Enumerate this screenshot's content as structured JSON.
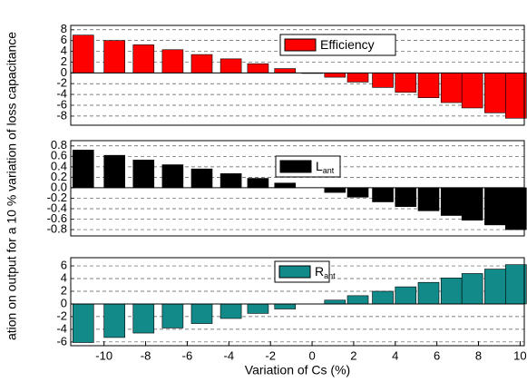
{
  "ylabel": "ation on output for a  10 % variation of loss capacitance",
  "chart_data": [
    {
      "type": "bar",
      "x": [
        -11,
        -9.5,
        -8.1,
        -6.7,
        -5.3,
        -3.9,
        -2.6,
        -1.3,
        0,
        1.1,
        2.2,
        3.4,
        4.5,
        5.6,
        6.7,
        7.7,
        8.8,
        9.8
      ],
      "series": [
        {
          "name": "Efficiency",
          "color": "#ff0000",
          "values": [
            7,
            6,
            5.2,
            4.3,
            3.4,
            2.6,
            1.7,
            0.8,
            -0.1,
            -0.8,
            -1.7,
            -2.7,
            -3.6,
            -4.6,
            -5.5,
            -6.5,
            -7.4,
            -8.4
          ]
        }
      ],
      "xlim": [
        -11.6,
        10.2
      ],
      "ylim": [
        -9.7,
        8.8
      ],
      "yticks": [
        -8,
        -6,
        -4,
        -2,
        0,
        2,
        4,
        6,
        8
      ],
      "grid": true
    },
    {
      "type": "bar",
      "x": [
        -11,
        -9.5,
        -8.1,
        -6.7,
        -5.3,
        -3.9,
        -2.6,
        -1.3,
        0,
        1.1,
        2.2,
        3.4,
        4.5,
        5.6,
        6.7,
        7.7,
        8.8,
        9.8
      ],
      "series": [
        {
          "name": "L",
          "subscript": "ant",
          "color": "#000000",
          "values": [
            0.72,
            0.62,
            0.53,
            0.44,
            0.36,
            0.27,
            0.18,
            0.09,
            0,
            -0.09,
            -0.18,
            -0.27,
            -0.36,
            -0.44,
            -0.53,
            -0.62,
            -0.71,
            -0.8
          ]
        }
      ],
      "xlim": [
        -11.6,
        10.2
      ],
      "ylim": [
        -0.92,
        0.9
      ],
      "yticks": [
        -0.8,
        -0.6,
        -0.4,
        -0.2,
        {
          "value": 0,
          "label": "0.0"
        },
        0.2,
        0.4,
        0.6,
        0.8
      ],
      "grid": true
    },
    {
      "type": "bar",
      "x": [
        -11,
        -9.5,
        -8.1,
        -6.7,
        -5.3,
        -3.9,
        -2.6,
        -1.3,
        0,
        1.1,
        2.2,
        3.4,
        4.5,
        5.6,
        6.7,
        7.7,
        8.8,
        9.8
      ],
      "series": [
        {
          "name": "R",
          "subscript": "ant",
          "color": "#138a8a",
          "values": [
            -6.1,
            -5.3,
            -4.6,
            -3.8,
            -3.1,
            -2.3,
            -1.5,
            -0.8,
            0,
            0.6,
            1.3,
            2.0,
            2.7,
            3.4,
            4.1,
            4.8,
            5.5,
            6.2
          ]
        }
      ],
      "xlim": [
        -11.6,
        10.2
      ],
      "ylim": [
        -6.6,
        7.3
      ],
      "yticks": [
        -6,
        -4,
        -2,
        0,
        2,
        4,
        6
      ],
      "grid": true,
      "xlabel": "Variation of Cs (%)",
      "xticks": [
        -10,
        -8,
        -6,
        -4,
        -2,
        0,
        2,
        4,
        6,
        8,
        10
      ]
    }
  ]
}
